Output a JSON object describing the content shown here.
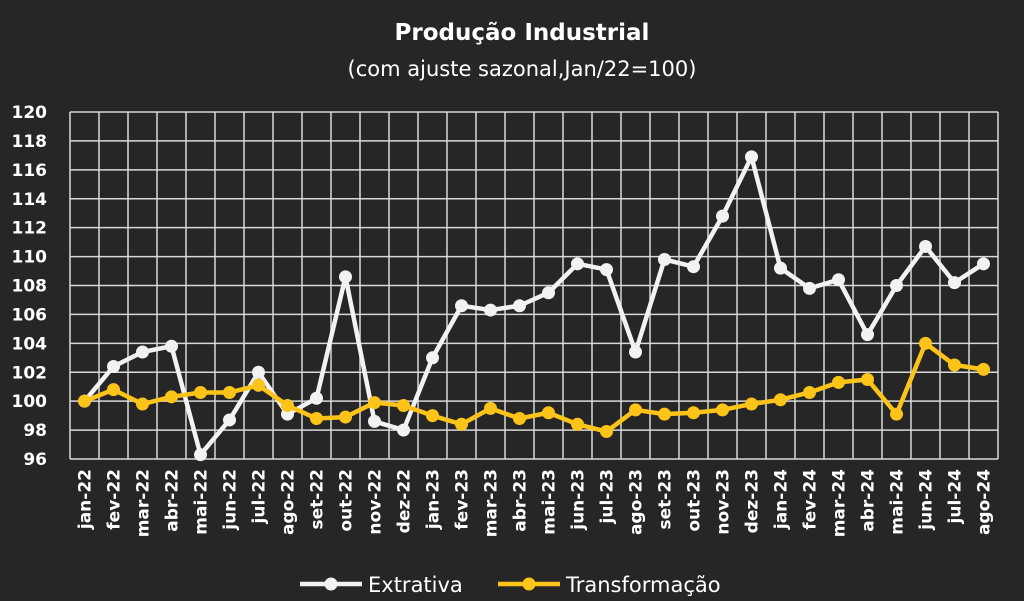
{
  "chart_data": {
    "type": "line",
    "title": "Produção Industrial",
    "subtitle": "(com ajuste sazonal,Jan/22=100)",
    "xlabel": "",
    "ylabel": "",
    "ylim": [
      96,
      120
    ],
    "yticks": [
      96,
      98,
      100,
      102,
      104,
      106,
      108,
      110,
      112,
      114,
      116,
      118,
      120
    ],
    "grid": true,
    "legend_position": "bottom",
    "categories": [
      "jan-22",
      "fev-22",
      "mar-22",
      "abr-22",
      "mai-22",
      "jun-22",
      "jul-22",
      "ago-22",
      "set-22",
      "out-22",
      "nov-22",
      "dez-22",
      "jan-23",
      "fev-23",
      "mar-23",
      "abr-23",
      "mai-23",
      "jun-23",
      "jul-23",
      "ago-23",
      "set-23",
      "out-23",
      "nov-23",
      "dez-23",
      "jan-24",
      "fev-24",
      "mar-24",
      "abr-24",
      "mai-24",
      "jun-24",
      "jul-24",
      "ago-24"
    ],
    "series": [
      {
        "name": "Extrativa",
        "color": "#f2f2f2",
        "values": [
          100.0,
          102.4,
          103.4,
          103.8,
          96.3,
          98.7,
          102.0,
          99.1,
          100.2,
          108.6,
          98.6,
          98.0,
          103.0,
          106.6,
          106.3,
          106.6,
          107.5,
          109.5,
          109.1,
          103.4,
          109.8,
          109.3,
          112.8,
          116.9,
          109.2,
          107.8,
          108.4,
          104.6,
          108.0,
          110.7,
          108.2,
          109.5
        ]
      },
      {
        "name": "Transformação",
        "color": "#fcc419",
        "values": [
          100.0,
          100.8,
          99.8,
          100.3,
          100.6,
          100.6,
          101.1,
          99.7,
          98.8,
          98.9,
          99.9,
          99.7,
          99.0,
          98.4,
          99.5,
          98.8,
          99.2,
          98.4,
          97.9,
          99.4,
          99.1,
          99.2,
          99.4,
          99.8,
          100.1,
          100.6,
          101.3,
          101.5,
          99.1,
          104.0,
          102.5,
          102.2
        ]
      }
    ]
  }
}
